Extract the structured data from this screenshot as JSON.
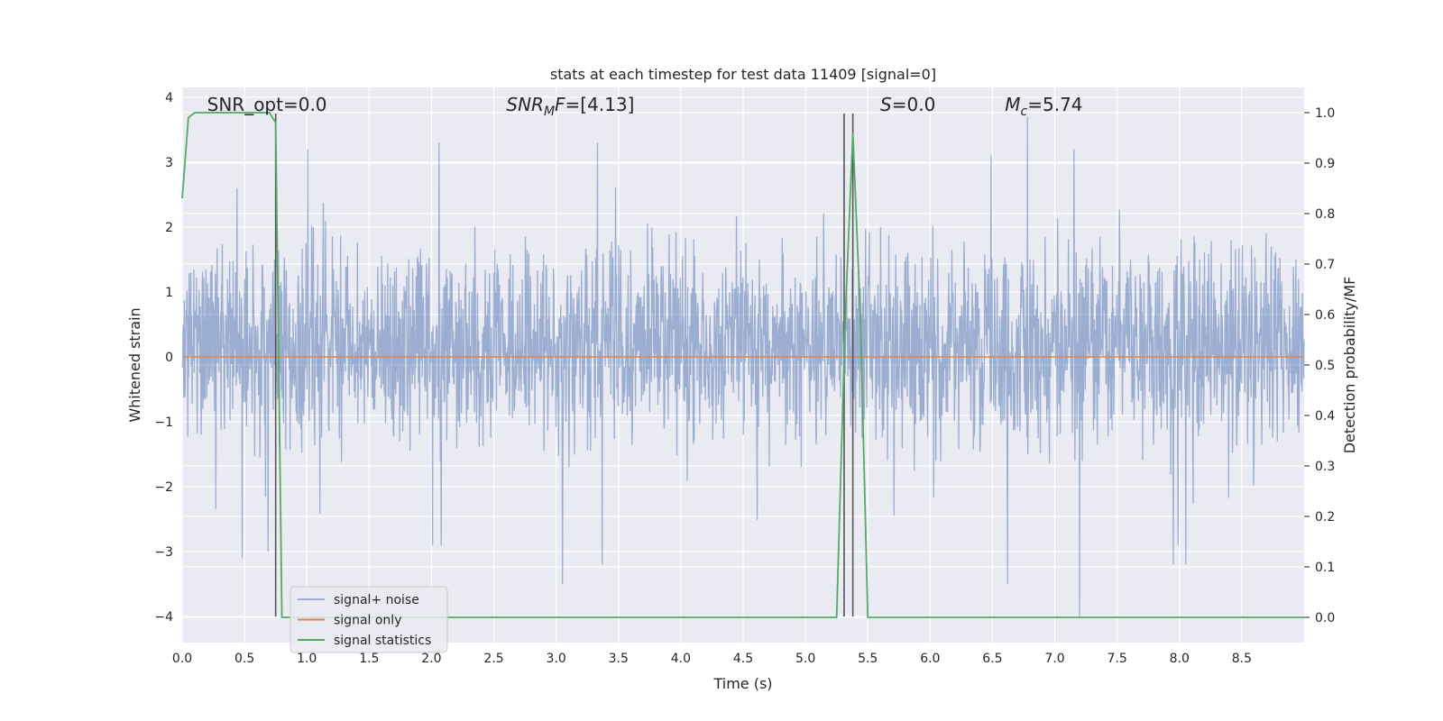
{
  "chart_data": {
    "type": "line",
    "title": "stats at each timestep for test data 11409 [signal=0]",
    "xlabel": "Time (s)",
    "ylabel": "Whitened strain",
    "ylabel_right": "Detection probability/MF",
    "xlim": [
      0.0,
      9.0
    ],
    "ylim": [
      -4.4,
      4.15
    ],
    "ylim_right": [
      -0.05,
      1.05
    ],
    "x_ticks": [
      0.0,
      0.5,
      1.0,
      1.5,
      2.0,
      2.5,
      3.0,
      3.5,
      4.0,
      4.5,
      5.0,
      5.5,
      6.0,
      6.5,
      7.0,
      7.5,
      8.0,
      8.5
    ],
    "x_tick_labels": [
      "0.0",
      "0.5",
      "1.0",
      "1.5",
      "2.0",
      "2.5",
      "3.0",
      "3.5",
      "4.0",
      "4.5",
      "5.0",
      "5.5",
      "6.0",
      "6.5",
      "7.0",
      "7.5",
      "8.0",
      "8.5"
    ],
    "y_ticks": [
      4,
      3,
      2,
      1,
      0,
      -1,
      -2,
      -3,
      -4
    ],
    "y_tick_labels": [
      "4",
      "3",
      "2",
      "1",
      "0",
      "−1",
      "−2",
      "−3",
      "−4"
    ],
    "y_right_ticks": [
      1.0,
      0.9,
      0.8,
      0.7,
      0.6,
      0.5,
      0.4,
      0.3,
      0.2,
      0.1,
      0.0
    ],
    "y_right_tick_labels": [
      "1.0",
      "0.9",
      "0.8",
      "0.7",
      "0.6",
      "0.5",
      "0.4",
      "0.3",
      "0.2",
      "0.1",
      "0.0"
    ],
    "grid": true,
    "legend_position": "lower-left",
    "annotations": [
      {
        "text": "SNR_opt=0.0",
        "x": 0.2
      },
      {
        "text": "SNR_MF=[4.13]",
        "x": 2.6,
        "main": "SNR",
        "sub": "M",
        "tail": "F=[4.13]"
      },
      {
        "text": "S=0.0",
        "x": 5.6,
        "main": "S",
        "tail": "=0.0"
      },
      {
        "text": "M_c=5.74",
        "x": 6.6,
        "main": "M",
        "sub": "c",
        "tail": "=5.74"
      }
    ],
    "series": [
      {
        "name": "signal+ noise",
        "color": "#4c72b0",
        "opacity": 0.5,
        "axis": "left",
        "description": "whitened strain noise, roughly within -1.7..2.2 with spikes to about 3.7 and -4.0",
        "envelope_upper": 2.2,
        "envelope_lower": -1.7,
        "spikes": [
          [
            0.48,
            -3.1
          ],
          [
            0.69,
            -3.0
          ],
          [
            3.05,
            -3.5
          ],
          [
            3.37,
            -3.2
          ],
          [
            6.62,
            -3.5
          ],
          [
            7.2,
            -4.0
          ],
          [
            7.95,
            -3.2
          ],
          [
            8.05,
            -3.2
          ],
          [
            6.78,
            3.7
          ],
          [
            2.06,
            3.3
          ],
          [
            3.33,
            3.3
          ],
          [
            6.49,
            3.1
          ]
        ]
      },
      {
        "name": "signal only",
        "color": "#dd8452",
        "axis": "left",
        "x": [
          0.0,
          9.0
        ],
        "y": [
          0.0,
          0.0
        ]
      },
      {
        "name": "signal statistics",
        "color": "#55a868",
        "axis": "right",
        "x": [
          0.0,
          0.05,
          0.1,
          0.2,
          0.3,
          0.4,
          0.5,
          0.6,
          0.7,
          0.75,
          0.8,
          0.9,
          1.0,
          2.0,
          3.0,
          4.0,
          5.0,
          5.25,
          5.32,
          5.38,
          5.44,
          5.5,
          6.0,
          7.0,
          8.0,
          8.9,
          9.0
        ],
        "y": [
          0.83,
          0.99,
          1.0,
          1.0,
          1.0,
          1.0,
          1.0,
          1.0,
          1.0,
          0.98,
          0.0,
          0.0,
          0.0,
          0.0,
          0.0,
          0.0,
          0.0,
          0.0,
          0.6,
          0.96,
          0.6,
          0.0,
          0.0,
          0.0,
          0.0,
          0.0,
          0.0
        ]
      }
    ],
    "vertical_lines": [
      {
        "x": 0.75,
        "y_from": -4.0,
        "y_to": 3.75,
        "color": "#555555"
      },
      {
        "x": 5.31,
        "y_from": -4.0,
        "y_to": 3.75,
        "color": "#555555"
      },
      {
        "x": 5.38,
        "y_from": -4.0,
        "y_to": 3.75,
        "color": "#555555"
      }
    ]
  }
}
